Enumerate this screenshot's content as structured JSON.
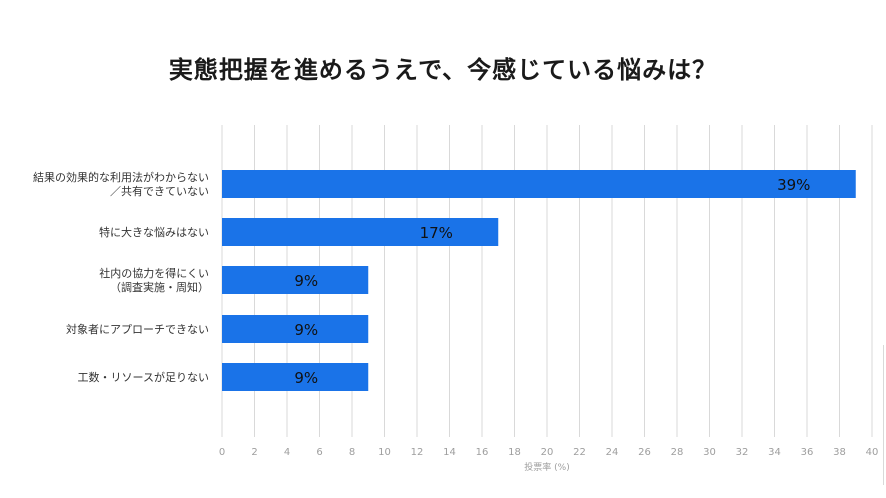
{
  "title": "実態把握を進めるうえで、今感じている悩みは？",
  "chart_data": {
    "type": "bar",
    "orientation": "horizontal",
    "title": "実態把握を進めるうえで、今感じている悩みは？",
    "categories": [
      [
        "結果の効果的な利用法がわからない",
        "／共有できていない"
      ],
      [
        "特に大きな悩みはない"
      ],
      [
        "社内の協力を得にくい",
        "（調査実施・周知）"
      ],
      [
        "対象者にアプローチできない"
      ],
      [
        "工数・リソースが足りない"
      ]
    ],
    "values": [
      39,
      17,
      9,
      9,
      9
    ],
    "data_labels": [
      "39%",
      "17%",
      "9%",
      "9%",
      "9%"
    ],
    "xlabel": "投票率 (%)",
    "xlim": [
      0,
      40
    ],
    "xticks": [
      0,
      2,
      4,
      6,
      8,
      10,
      12,
      14,
      16,
      18,
      20,
      22,
      24,
      26,
      28,
      30,
      32,
      34,
      36,
      38,
      40
    ],
    "grid": true,
    "bar_color": "#1a73e8",
    "grid_color": "#d9d9d9"
  }
}
